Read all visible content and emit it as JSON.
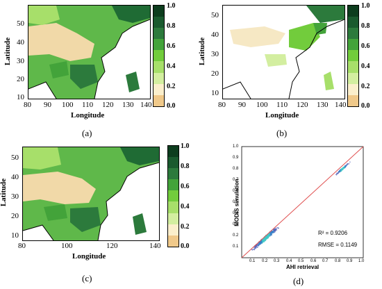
{
  "colors": {
    "cb": [
      "#f0c98a",
      "#fbefcc",
      "#d3eea0",
      "#a7df6a",
      "#72cc3c",
      "#43a33a",
      "#2c7a3c",
      "#1a5a2e",
      "#0d3d1e"
    ],
    "land_bg": "#ffffff",
    "desert": "#f3dba8",
    "scatter_line": "#e05050",
    "scatter_point": "#5060b8"
  },
  "maps": [
    {
      "id": "a",
      "panel_label": "(a)",
      "ylabel": "Latitude",
      "xlabel": "Longitude",
      "xticks": [
        "80",
        "90",
        "100",
        "110",
        "120",
        "130",
        "140"
      ],
      "yticks": [
        "50",
        "40",
        "30",
        "20",
        "10"
      ],
      "cbticks": [
        "1.0",
        "0.8",
        "0.6",
        "0.4",
        "0.2",
        "0.0"
      ]
    },
    {
      "id": "b",
      "panel_label": "(b)",
      "ylabel": "Latitude",
      "xlabel": "Longitude",
      "xticks": [
        "80",
        "90",
        "100",
        "110",
        "120",
        "130",
        "140"
      ],
      "yticks": [
        "50",
        "40",
        "30",
        "20",
        "10"
      ],
      "cbticks": [
        "1.0",
        "0.8",
        "0.6",
        "0.4",
        "0.2",
        "0.0"
      ]
    },
    {
      "id": "c",
      "panel_label": "(c)",
      "ylabel": "Latitude",
      "xlabel": "Longitude",
      "xticks": [
        "80",
        "100",
        "120",
        "140"
      ],
      "yticks": [
        "50",
        "40",
        "30",
        "20",
        "10"
      ],
      "cbticks": [
        "1.0",
        "0.8",
        "0.6",
        "0.4",
        "0.2",
        "0.0"
      ]
    }
  ],
  "scatter": {
    "panel_label": "(d)",
    "xlabel": "AHI retrieval",
    "ylabel": "MODIS simulation",
    "r2": "R² = 0.9206",
    "rmse": "RMSE = 0.1149",
    "xticks": [
      "0.1",
      "0.2",
      "0.3",
      "0.4",
      "0.5",
      "0.6",
      "0.7",
      "0.8",
      "0.9",
      "1.0"
    ],
    "yticks": [
      "1.0",
      "0.9",
      "0.8",
      "0.7",
      "0.6",
      "0.5",
      "0.4",
      "0.3",
      "0.2",
      "0.1"
    ]
  },
  "chart_data": {
    "type": "scatter",
    "xlabel": "AHI retrieval",
    "ylabel": "MODIS simulation",
    "xlim": [
      0,
      1.0
    ],
    "ylim": [
      0,
      1.0
    ],
    "r2": 0.9206,
    "rmse": 0.1149,
    "clusters": [
      {
        "x_center": 0.2,
        "y_center": 0.18,
        "spread": 0.08
      },
      {
        "x_center": 0.83,
        "y_center": 0.8,
        "spread": 0.04
      }
    ]
  }
}
